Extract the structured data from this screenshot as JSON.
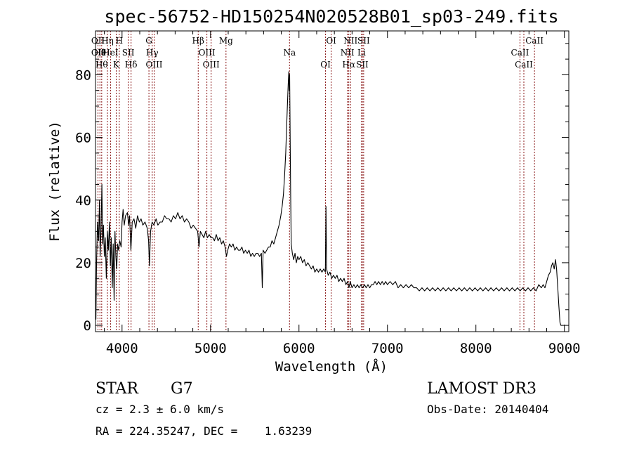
{
  "chart_data": {
    "type": "line",
    "title": "spec-56752-HD150254N020528B01_sp03-249.fits",
    "xlabel": "Wavelength (Å)",
    "ylabel": "Flux (relative)",
    "xlim": [
      3700,
      9050
    ],
    "ylim": [
      -2,
      94
    ],
    "x_ticks": [
      4000,
      5000,
      6000,
      7000,
      8000,
      9000
    ],
    "y_ticks": [
      0,
      20,
      40,
      60,
      80
    ],
    "grid": false,
    "series": [
      {
        "values": [
          [
            3700,
            8
          ],
          [
            3705,
            2
          ],
          [
            3712,
            20
          ],
          [
            3722,
            33
          ],
          [
            3735,
            27
          ],
          [
            3745,
            40
          ],
          [
            3752,
            22
          ],
          [
            3762,
            30
          ],
          [
            3772,
            45
          ],
          [
            3780,
            26
          ],
          [
            3790,
            32
          ],
          [
            3800,
            22
          ],
          [
            3810,
            28
          ],
          [
            3822,
            15
          ],
          [
            3835,
            30
          ],
          [
            3845,
            24
          ],
          [
            3858,
            33
          ],
          [
            3868,
            19
          ],
          [
            3878,
            28
          ],
          [
            3890,
            12
          ],
          [
            3900,
            26
          ],
          [
            3910,
            8
          ],
          [
            3920,
            30
          ],
          [
            3930,
            22
          ],
          [
            3940,
            18
          ],
          [
            3950,
            26
          ],
          [
            3960,
            24
          ],
          [
            3975,
            27
          ],
          [
            3990,
            25
          ],
          [
            4000,
            33
          ],
          [
            4012,
            37
          ],
          [
            4025,
            32
          ],
          [
            4040,
            35
          ],
          [
            4060,
            36
          ],
          [
            4075,
            32
          ],
          [
            4085,
            35
          ],
          [
            4100,
            24
          ],
          [
            4115,
            33
          ],
          [
            4135,
            34
          ],
          [
            4155,
            31
          ],
          [
            4175,
            35
          ],
          [
            4195,
            33
          ],
          [
            4215,
            34
          ],
          [
            4235,
            32
          ],
          [
            4260,
            33
          ],
          [
            4285,
            31
          ],
          [
            4300,
            27
          ],
          [
            4310,
            19
          ],
          [
            4322,
            30
          ],
          [
            4340,
            33
          ],
          [
            4360,
            32
          ],
          [
            4385,
            34
          ],
          [
            4405,
            32
          ],
          [
            4430,
            33
          ],
          [
            4455,
            33
          ],
          [
            4480,
            35
          ],
          [
            4505,
            34
          ],
          [
            4530,
            34
          ],
          [
            4555,
            33
          ],
          [
            4580,
            35
          ],
          [
            4605,
            34
          ],
          [
            4630,
            36
          ],
          [
            4655,
            34
          ],
          [
            4680,
            35
          ],
          [
            4705,
            33
          ],
          [
            4730,
            34
          ],
          [
            4755,
            33
          ],
          [
            4780,
            31
          ],
          [
            4805,
            32
          ],
          [
            4830,
            31
          ],
          [
            4855,
            30
          ],
          [
            4870,
            25
          ],
          [
            4885,
            30
          ],
          [
            4905,
            29
          ],
          [
            4925,
            28
          ],
          [
            4945,
            30
          ],
          [
            4965,
            28
          ],
          [
            4985,
            29
          ],
          [
            5005,
            28
          ],
          [
            5025,
            28
          ],
          [
            5045,
            27
          ],
          [
            5065,
            29
          ],
          [
            5085,
            27
          ],
          [
            5105,
            28
          ],
          [
            5125,
            26
          ],
          [
            5145,
            27
          ],
          [
            5165,
            25
          ],
          [
            5180,
            22
          ],
          [
            5195,
            24
          ],
          [
            5215,
            26
          ],
          [
            5235,
            25
          ],
          [
            5255,
            26
          ],
          [
            5275,
            24
          ],
          [
            5295,
            25
          ],
          [
            5315,
            24
          ],
          [
            5335,
            24
          ],
          [
            5355,
            25
          ],
          [
            5375,
            23
          ],
          [
            5395,
            24
          ],
          [
            5415,
            23
          ],
          [
            5435,
            24
          ],
          [
            5455,
            22
          ],
          [
            5475,
            23
          ],
          [
            5495,
            22
          ],
          [
            5515,
            23
          ],
          [
            5535,
            23
          ],
          [
            5555,
            22
          ],
          [
            5575,
            23
          ],
          [
            5585,
            12
          ],
          [
            5595,
            24
          ],
          [
            5615,
            23
          ],
          [
            5635,
            24
          ],
          [
            5655,
            25
          ],
          [
            5675,
            25
          ],
          [
            5695,
            27
          ],
          [
            5715,
            26
          ],
          [
            5735,
            28
          ],
          [
            5755,
            30
          ],
          [
            5775,
            32
          ],
          [
            5795,
            35
          ],
          [
            5810,
            38
          ],
          [
            5825,
            42
          ],
          [
            5838,
            48
          ],
          [
            5850,
            55
          ],
          [
            5860,
            63
          ],
          [
            5870,
            71
          ],
          [
            5878,
            77
          ],
          [
            5885,
            81
          ],
          [
            5890,
            75
          ],
          [
            5895,
            80
          ],
          [
            5900,
            60
          ],
          [
            5906,
            42
          ],
          [
            5912,
            26
          ],
          [
            5925,
            23
          ],
          [
            5940,
            21
          ],
          [
            5955,
            23
          ],
          [
            5970,
            20
          ],
          [
            5985,
            22
          ],
          [
            6000,
            21
          ],
          [
            6020,
            22
          ],
          [
            6040,
            20
          ],
          [
            6060,
            21
          ],
          [
            6080,
            19
          ],
          [
            6100,
            20
          ],
          [
            6120,
            19
          ],
          [
            6140,
            18
          ],
          [
            6160,
            19
          ],
          [
            6180,
            17
          ],
          [
            6200,
            18
          ],
          [
            6220,
            17
          ],
          [
            6240,
            18
          ],
          [
            6260,
            17
          ],
          [
            6280,
            18
          ],
          [
            6298,
            17
          ],
          [
            6305,
            38
          ],
          [
            6312,
            18
          ],
          [
            6330,
            16
          ],
          [
            6350,
            17
          ],
          [
            6370,
            15
          ],
          [
            6390,
            16
          ],
          [
            6410,
            15
          ],
          [
            6430,
            16
          ],
          [
            6450,
            14
          ],
          [
            6470,
            15
          ],
          [
            6490,
            14
          ],
          [
            6510,
            15
          ],
          [
            6530,
            13
          ],
          [
            6550,
            14
          ],
          [
            6565,
            12
          ],
          [
            6580,
            14
          ],
          [
            6600,
            12
          ],
          [
            6620,
            13
          ],
          [
            6640,
            12
          ],
          [
            6660,
            13
          ],
          [
            6680,
            12
          ],
          [
            6700,
            13
          ],
          [
            6720,
            12
          ],
          [
            6740,
            13
          ],
          [
            6760,
            12
          ],
          [
            6780,
            13
          ],
          [
            6800,
            12
          ],
          [
            6820,
            13
          ],
          [
            6840,
            13
          ],
          [
            6860,
            14
          ],
          [
            6880,
            13
          ],
          [
            6900,
            14
          ],
          [
            6920,
            13
          ],
          [
            6940,
            14
          ],
          [
            6960,
            13
          ],
          [
            6980,
            14
          ],
          [
            7000,
            13
          ],
          [
            7030,
            14
          ],
          [
            7060,
            13
          ],
          [
            7090,
            14
          ],
          [
            7120,
            12
          ],
          [
            7150,
            13
          ],
          [
            7180,
            12
          ],
          [
            7210,
            13
          ],
          [
            7240,
            12
          ],
          [
            7270,
            13
          ],
          [
            7300,
            12
          ],
          [
            7330,
            12
          ],
          [
            7360,
            11
          ],
          [
            7390,
            12
          ],
          [
            7420,
            11
          ],
          [
            7450,
            12
          ],
          [
            7480,
            11
          ],
          [
            7510,
            12
          ],
          [
            7540,
            11
          ],
          [
            7570,
            12
          ],
          [
            7600,
            11
          ],
          [
            7630,
            12
          ],
          [
            7660,
            11
          ],
          [
            7690,
            12
          ],
          [
            7720,
            11
          ],
          [
            7750,
            12
          ],
          [
            7780,
            11
          ],
          [
            7810,
            12
          ],
          [
            7840,
            11
          ],
          [
            7870,
            12
          ],
          [
            7900,
            11
          ],
          [
            7930,
            12
          ],
          [
            7960,
            11
          ],
          [
            7990,
            12
          ],
          [
            8020,
            11
          ],
          [
            8050,
            12
          ],
          [
            8080,
            11
          ],
          [
            8110,
            12
          ],
          [
            8140,
            11
          ],
          [
            8170,
            12
          ],
          [
            8200,
            11
          ],
          [
            8230,
            12
          ],
          [
            8260,
            11
          ],
          [
            8290,
            12
          ],
          [
            8320,
            11
          ],
          [
            8350,
            12
          ],
          [
            8380,
            11
          ],
          [
            8410,
            12
          ],
          [
            8440,
            11
          ],
          [
            8470,
            12
          ],
          [
            8500,
            11
          ],
          [
            8530,
            12
          ],
          [
            8560,
            11
          ],
          [
            8590,
            12
          ],
          [
            8620,
            11
          ],
          [
            8650,
            12
          ],
          [
            8680,
            11
          ],
          [
            8710,
            13
          ],
          [
            8740,
            12
          ],
          [
            8760,
            13
          ],
          [
            8780,
            12
          ],
          [
            8800,
            14
          ],
          [
            8820,
            16
          ],
          [
            8840,
            17
          ],
          [
            8855,
            19
          ],
          [
            8870,
            20
          ],
          [
            8885,
            18
          ],
          [
            8900,
            21
          ],
          [
            8912,
            18
          ],
          [
            8925,
            12
          ],
          [
            8938,
            6
          ],
          [
            8950,
            1
          ],
          [
            8960,
            0
          ],
          [
            8975,
            0
          ]
        ]
      }
    ],
    "line_markers": [
      {
        "wavelength": 3728,
        "labels": [
          "OII",
          "OII"
        ]
      },
      {
        "wavelength": 3750,
        "labels": [
          "Hθ"
        ]
      },
      {
        "wavelength": 3770,
        "labels": [
          "Hθ"
        ]
      },
      {
        "wavelength": 3835,
        "labels": [
          "Hη"
        ]
      },
      {
        "wavelength": 3870,
        "labels": [
          "HeI"
        ]
      },
      {
        "wavelength": 3934,
        "labels": [
          "K"
        ]
      },
      {
        "wavelength": 3969,
        "labels": [
          "H"
        ]
      },
      {
        "wavelength": 4070,
        "labels": [
          "SII"
        ]
      },
      {
        "wavelength": 4102,
        "labels": [
          "Hδ"
        ]
      },
      {
        "wavelength": 4304,
        "labels": [
          "G"
        ]
      },
      {
        "wavelength": 4341,
        "labels": [
          "Hγ"
        ]
      },
      {
        "wavelength": 4363,
        "labels": [
          "OIII"
        ]
      },
      {
        "wavelength": 4861,
        "labels": [
          "Hβ"
        ]
      },
      {
        "wavelength": 4959,
        "labels": [
          "OIII"
        ]
      },
      {
        "wavelength": 5007,
        "labels": [
          "OIII"
        ]
      },
      {
        "wavelength": 5175,
        "labels": [
          "Mg"
        ]
      },
      {
        "wavelength": 5893,
        "labels": [
          "Na"
        ]
      },
      {
        "wavelength": 6300,
        "labels": [
          "OI"
        ]
      },
      {
        "wavelength": 6364,
        "labels": [
          "OI"
        ]
      },
      {
        "wavelength": 6548,
        "labels": [
          "NII"
        ]
      },
      {
        "wavelength": 6563,
        "labels": [
          "Hα"
        ]
      },
      {
        "wavelength": 6583,
        "labels": [
          "NII"
        ]
      },
      {
        "wavelength": 6708,
        "labels": [
          "Li"
        ]
      },
      {
        "wavelength": 6716,
        "labels": [
          "SII"
        ]
      },
      {
        "wavelength": 6731,
        "labels": [
          "SII"
        ]
      },
      {
        "wavelength": 8498,
        "labels": [
          "CaII"
        ]
      },
      {
        "wavelength": 8542,
        "labels": [
          "CaII"
        ]
      },
      {
        "wavelength": 8662,
        "labels": [
          "CaII"
        ]
      }
    ]
  },
  "info": {
    "object_class": "STAR",
    "subclass": "G7",
    "cz": "cz = 2.3 ± 6.0 km/s",
    "coords": "RA = 224.35247, DEC =    1.63239",
    "survey": "LAMOST DR3",
    "obs_date": "Obs-Date: 20140404"
  },
  "colors": {
    "spectrum": "#000000",
    "marker_lines": "#8b1a1a"
  }
}
